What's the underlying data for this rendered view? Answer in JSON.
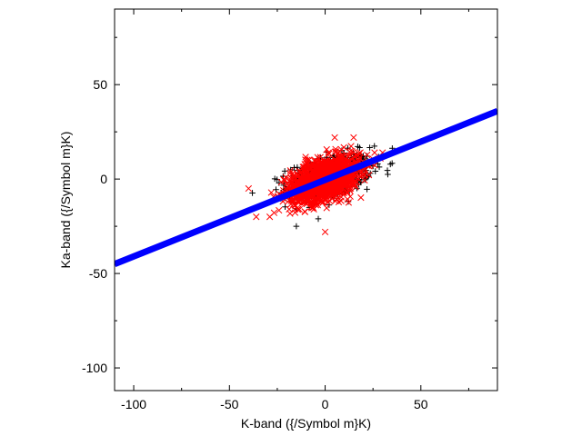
{
  "chart_data": {
    "type": "scatter",
    "title": "",
    "xlabel": "K-band ({/Symbol m}K)",
    "ylabel": "Ka-band ({/Symbol m}K)",
    "xlim": [
      -110,
      90
    ],
    "ylim": [
      -112,
      90
    ],
    "grid": false,
    "legend": "none",
    "x_ticks": [
      -100,
      -50,
      0,
      50
    ],
    "x_tick_labels": [
      "-100",
      "-50",
      "0",
      "50"
    ],
    "y_ticks": [
      -100,
      -50,
      0,
      50
    ],
    "y_tick_labels": [
      "-100",
      "-50",
      "0",
      "50"
    ],
    "x_minor_ticks": [
      -75,
      -25,
      25,
      75
    ],
    "y_minor_ticks": [
      -75,
      -25,
      25,
      75
    ],
    "series": [
      {
        "marker": "plus",
        "color": "#000000",
        "distribution": {
          "count": 650,
          "x_mean": 2,
          "x_std": 11,
          "y_mean": 1,
          "y_std": 6,
          "correlation": 0.45,
          "x_range": [
            -38,
            45
          ],
          "y_range": [
            -25,
            22
          ]
        }
      },
      {
        "marker": "cross",
        "color": "#ff0000",
        "distribution": {
          "count": 1500,
          "x_mean": 0,
          "x_std": 9,
          "y_mean": 0,
          "y_std": 6,
          "correlation": 0.45,
          "x_range": [
            -40,
            40
          ],
          "y_range": [
            -28,
            22
          ]
        },
        "points": [
          {
            "x": -40,
            "y": -5
          },
          {
            "x": -36,
            "y": -20
          },
          {
            "x": 0,
            "y": -28
          },
          {
            "x": 5,
            "y": 22
          },
          {
            "x": 30,
            "y": 14
          }
        ]
      },
      {
        "type": "line",
        "color": "#0000ff",
        "x": [
          -110,
          90
        ],
        "y": [
          -45,
          36
        ]
      }
    ]
  }
}
